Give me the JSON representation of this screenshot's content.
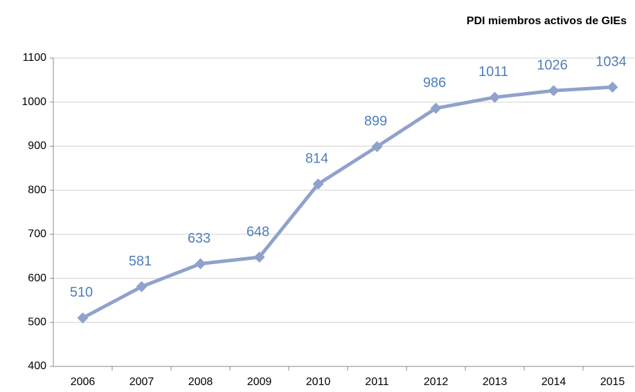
{
  "chart_data": {
    "type": "line",
    "title": "PDI miembros activos de GIEs",
    "categories": [
      "2006",
      "2007",
      "2008",
      "2009",
      "2010",
      "2011",
      "2012",
      "2013",
      "2014",
      "2015"
    ],
    "series": [
      {
        "name": "PDI miembros activos de GIEs",
        "color": "#8fa2cb",
        "label_color": "#4f7fbb",
        "values": [
          510,
          581,
          633,
          648,
          814,
          899,
          986,
          1011,
          1026,
          1034
        ]
      }
    ],
    "ylim": [
      400,
      1100
    ],
    "yticks": [
      400,
      500,
      600,
      700,
      800,
      900,
      1000,
      1100
    ],
    "grid": true
  }
}
